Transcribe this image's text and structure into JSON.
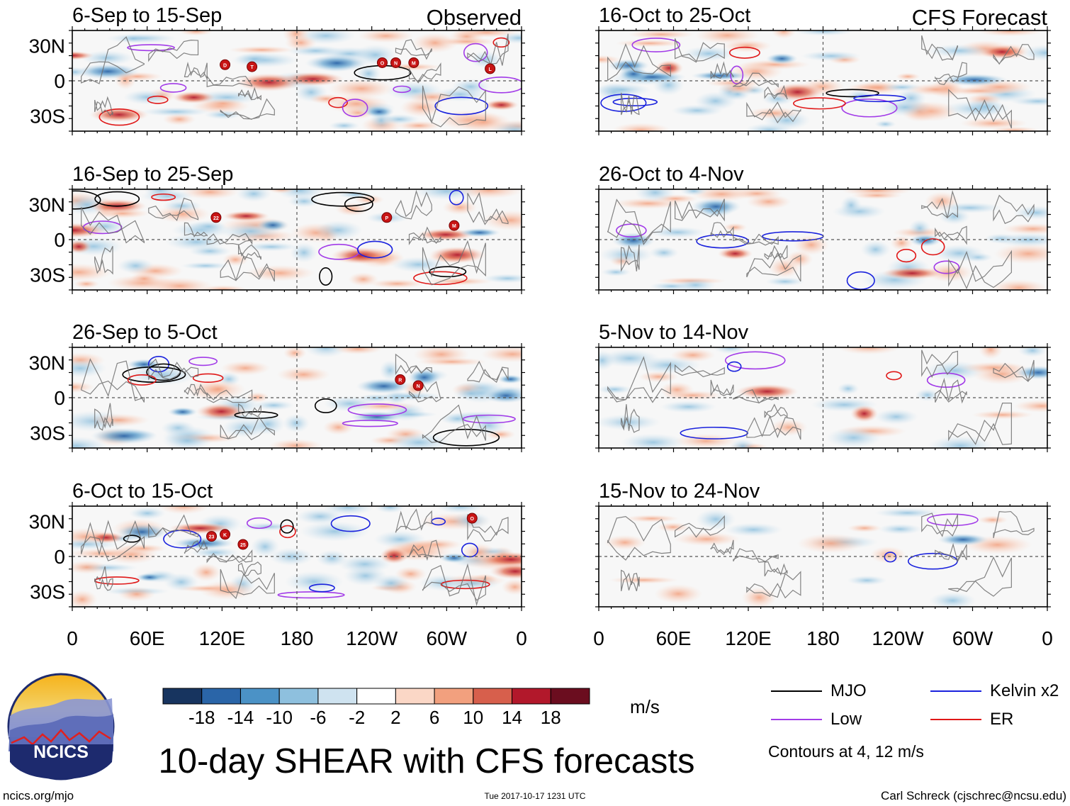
{
  "chart_data": {
    "type": "heatmap",
    "title": "10-day SHEAR with CFS forecasts",
    "units": "m/s",
    "columns": [
      {
        "label": "Observed",
        "panels": [
          "6-Sep to 15-Sep",
          "16-Sep to 25-Sep",
          "26-Sep to 5-Oct",
          "6-Oct to 15-Oct"
        ]
      },
      {
        "label": "CFS Forecast",
        "panels": [
          "16-Oct to 25-Oct",
          "26-Oct to 4-Nov",
          "5-Nov to 14-Nov",
          "15-Nov to 24-Nov"
        ]
      }
    ],
    "x_ticks": [
      "0",
      "60E",
      "120E",
      "180",
      "120W",
      "60W",
      "0"
    ],
    "y_ticks": [
      "30N",
      "0",
      "30S"
    ],
    "colorbar": {
      "labels": [
        "-18",
        "-14",
        "-10",
        "-6",
        "-2",
        "2",
        "6",
        "10",
        "14",
        "18"
      ],
      "colors": [
        "#17345f",
        "#2a65a8",
        "#4b92c6",
        "#8ec0de",
        "#cfe3f0",
        "#ffffff",
        "#fbd7c6",
        "#f2a07e",
        "#d75f4c",
        "#b2182b",
        "#6b0d1f"
      ]
    },
    "legend": [
      {
        "label": "MJO",
        "color": "#000000"
      },
      {
        "label": "Kelvin x2",
        "color": "#1a22dd"
      },
      {
        "label": "Low",
        "color": "#a23be8"
      },
      {
        "label": "ER",
        "color": "#e01818"
      }
    ],
    "contour_note": "Contours at 4, 12 m/s",
    "storm_markers": [
      {
        "panel": 0,
        "labels": [
          "D",
          "T",
          "O",
          "N",
          "M",
          "L"
        ]
      },
      {
        "panel": 1,
        "labels": [
          "22",
          "P",
          "M"
        ]
      },
      {
        "panel": 2,
        "labels": [
          "R",
          "N"
        ]
      },
      {
        "panel": 3,
        "labels": [
          "23",
          "K",
          "25",
          "O"
        ]
      }
    ]
  },
  "footer": {
    "logo_text": "NCICS",
    "site": "ncics.org/mjo",
    "timestamp": "Tue 2017-10-17 1231 UTC",
    "credit": "Carl Schreck (cjschrec@ncsu.edu)"
  }
}
